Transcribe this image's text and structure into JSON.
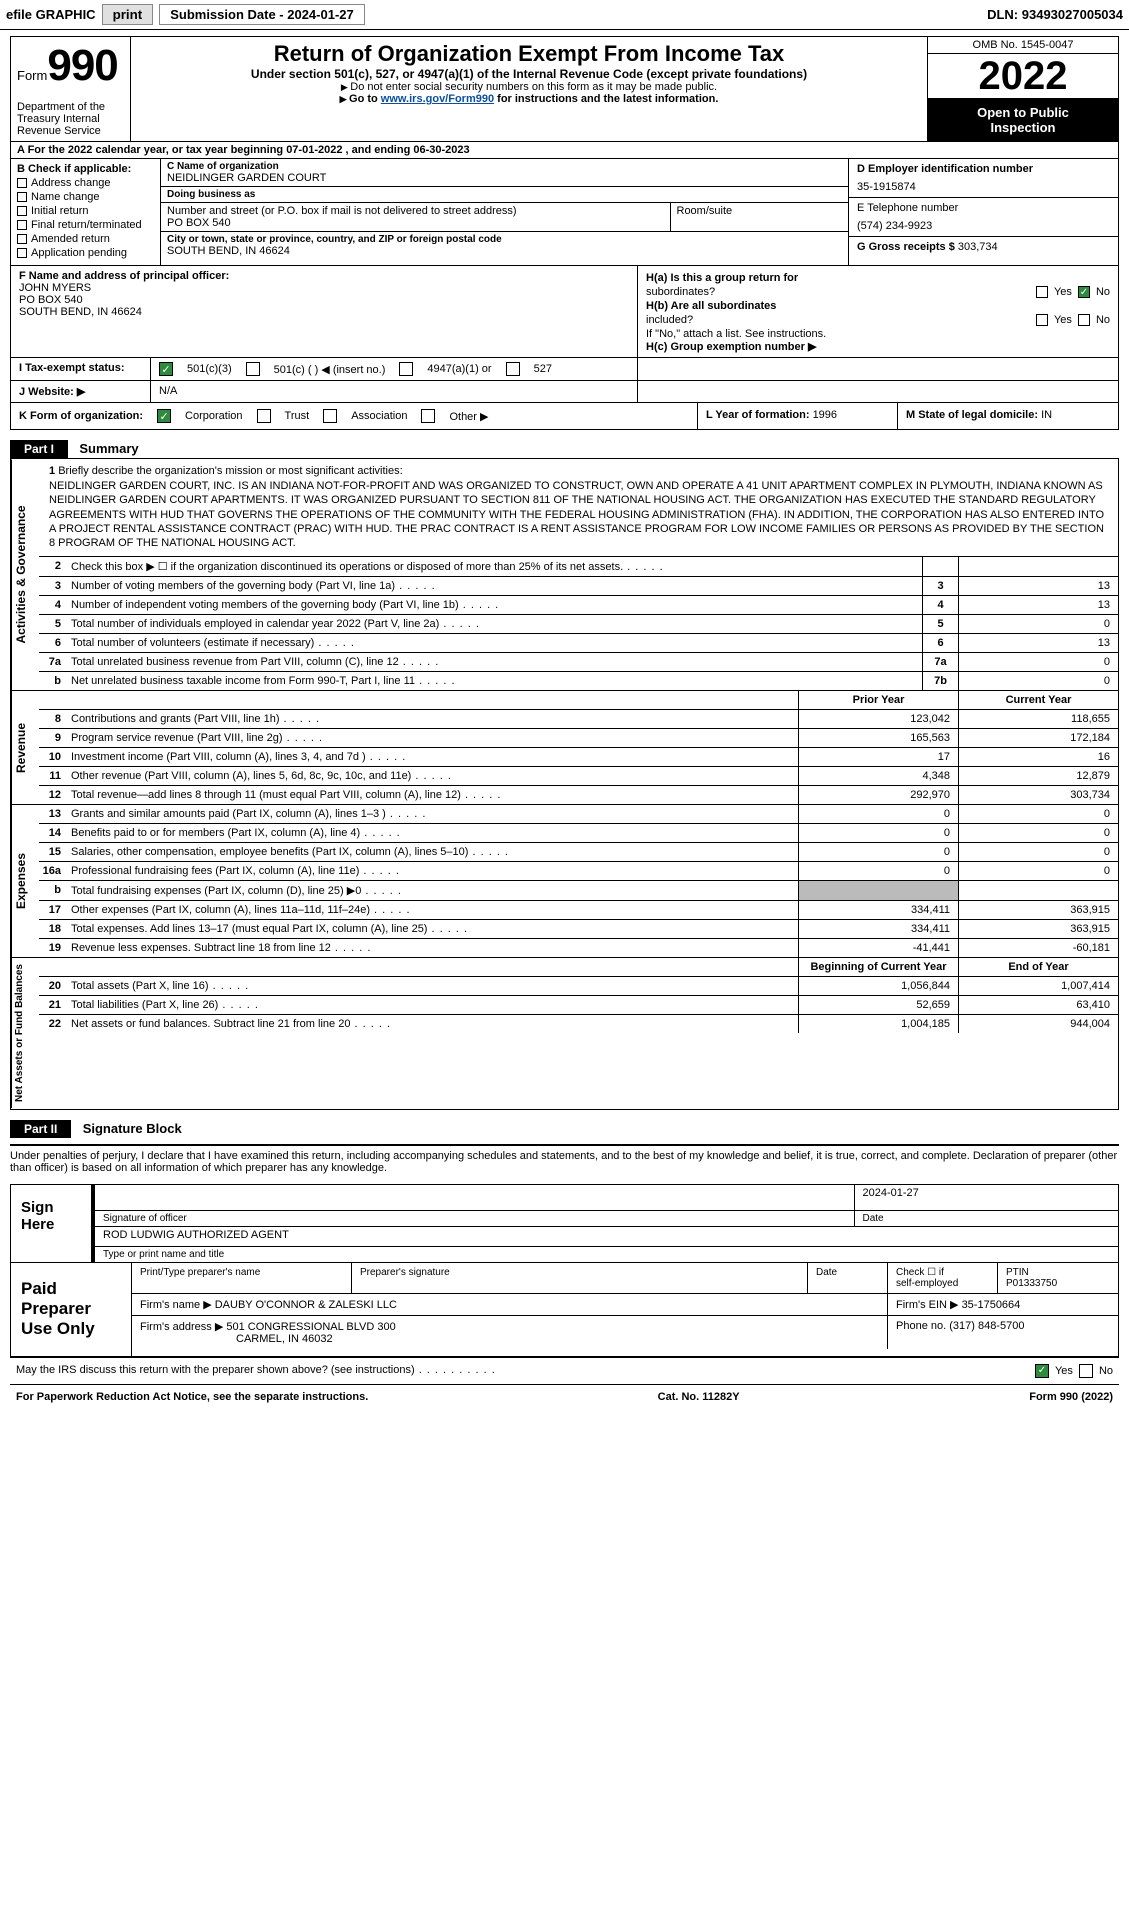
{
  "topbar": {
    "efile": "efile GRAPHIC",
    "print": "print",
    "sub_label": "Submission Date - ",
    "sub_date": "2024-01-27",
    "dln_label": "DLN: ",
    "dln": "93493027005034"
  },
  "header": {
    "form_word": "Form",
    "form_num": "990",
    "dept": "Department of the Treasury Internal Revenue Service",
    "title": "Return of Organization Exempt From Income Tax",
    "sub": "Under section 501(c), 527, or 4947(a)(1) of the Internal Revenue Code (except private foundations)",
    "line1": "Do not enter social security numbers on this form as it may be made public.",
    "line2_pre": "Go to ",
    "line2_link": "www.irs.gov/Form990",
    "line2_post": " for instructions and the latest information.",
    "omb": "OMB No. 1545-0047",
    "year": "2022",
    "inspect1": "Open to Public",
    "inspect2": "Inspection"
  },
  "rowA": "A For the 2022 calendar year, or tax year beginning 07-01-2022    , and ending 06-30-2023",
  "colB": {
    "hdr": "B Check if applicable:",
    "items": [
      "Address change",
      "Name change",
      "Initial return",
      "Final return/terminated",
      "Amended return",
      "Application pending"
    ]
  },
  "colC": {
    "name_lbl": "C Name of organization",
    "name": "NEIDLINGER GARDEN COURT",
    "dba_lbl": "Doing business as",
    "dba": "",
    "street_lbl": "Number and street (or P.O. box if mail is not delivered to street address)",
    "street": "PO BOX 540",
    "room_lbl": "Room/suite",
    "city_lbl": "City or town, state or province, country, and ZIP or foreign postal code",
    "city": "SOUTH BEND, IN  46624"
  },
  "colD": {
    "ein_lbl": "D Employer identification number",
    "ein": "35-1915874",
    "phone_lbl": "E Telephone number",
    "phone": "(574) 234-9923",
    "gross_lbl": "G Gross receipts $ ",
    "gross": "303,734"
  },
  "rowF": {
    "lbl": "F  Name and address of principal officer:",
    "name": "JOHN MYERS",
    "addr1": "PO BOX 540",
    "addr2": "SOUTH BEND, IN  46624"
  },
  "rowH": {
    "ha": "H(a)  Is this a group return for",
    "ha2": "subordinates?",
    "hb": "H(b)  Are all subordinates",
    "hb2": "included?",
    "hb_note": "If \"No,\" attach a list. See instructions.",
    "hc": "H(c)  Group exemption number ▶",
    "yes": "Yes",
    "no": "No"
  },
  "rowI": {
    "lbl": "I    Tax-exempt status:",
    "o1": "501(c)(3)",
    "o2": "501(c) (   ) ◀ (insert no.)",
    "o3": "4947(a)(1) or",
    "o4": "527"
  },
  "rowJ": {
    "lbl": "J   Website: ▶",
    "val": "N/A"
  },
  "rowK": {
    "lbl": "K Form of organization:",
    "o1": "Corporation",
    "o2": "Trust",
    "o3": "Association",
    "o4": "Other ▶"
  },
  "rowL": {
    "lbl": "L Year of formation: ",
    "val": "1996"
  },
  "rowM": {
    "lbl": "M State of legal domicile: ",
    "val": "IN"
  },
  "part1": {
    "hdr": "Part I",
    "title": "Summary"
  },
  "mission": {
    "num": "1",
    "lbl": "Briefly describe the organization's mission or most significant activities:",
    "text": "NEIDLINGER GARDEN COURT, INC. IS AN INDIANA NOT-FOR-PROFIT AND WAS ORGANIZED TO CONSTRUCT, OWN AND OPERATE A 41 UNIT APARTMENT COMPLEX IN PLYMOUTH, INDIANA KNOWN AS NEIDLINGER GARDEN COURT APARTMENTS. IT WAS ORGANIZED PURSUANT TO SECTION 811 OF THE NATIONAL HOUSING ACT. THE ORGANIZATION HAS EXECUTED THE STANDARD REGULATORY AGREEMENTS WITH HUD THAT GOVERNS THE OPERATIONS OF THE COMMUNITY WITH THE FEDERAL HOUSING ADMINISTRATION (FHA). IN ADDITION, THE CORPORATION HAS ALSO ENTERED INTO A PROJECT RENTAL ASSISTANCE CONTRACT (PRAC) WITH HUD. THE PRAC CONTRACT IS A RENT ASSISTANCE PROGRAM FOR LOW INCOME FAMILIES OR PERSONS AS PROVIDED BY THE SECTION 8 PROGRAM OF THE NATIONAL HOUSING ACT."
  },
  "strips": {
    "ag": "Activities & Governance",
    "rev": "Revenue",
    "exp": "Expenses",
    "net": "Net Assets or Fund Balances"
  },
  "lines_ag": [
    {
      "n": "2",
      "d": "Check this box ▶ ☐  if the organization discontinued its operations or disposed of more than 25% of its net assets.",
      "box": "",
      "v": ""
    },
    {
      "n": "3",
      "d": "Number of voting members of the governing body (Part VI, line 1a)",
      "box": "3",
      "v": "13"
    },
    {
      "n": "4",
      "d": "Number of independent voting members of the governing body (Part VI, line 1b)",
      "box": "4",
      "v": "13"
    },
    {
      "n": "5",
      "d": "Total number of individuals employed in calendar year 2022 (Part V, line 2a)",
      "box": "5",
      "v": "0"
    },
    {
      "n": "6",
      "d": "Total number of volunteers (estimate if necessary)",
      "box": "6",
      "v": "13"
    },
    {
      "n": "7a",
      "d": "Total unrelated business revenue from Part VIII, column (C), line 12",
      "box": "7a",
      "v": "0"
    },
    {
      "n": "b",
      "d": "Net unrelated business taxable income from Form 990-T, Part I, line 11",
      "box": "7b",
      "v": "0"
    }
  ],
  "col_hdrs": {
    "py": "Prior Year",
    "cy": "Current Year",
    "boy": "Beginning of Current Year",
    "eoy": "End of Year"
  },
  "lines_rev": [
    {
      "n": "8",
      "d": "Contributions and grants (Part VIII, line 1h)",
      "py": "123,042",
      "cy": "118,655"
    },
    {
      "n": "9",
      "d": "Program service revenue (Part VIII, line 2g)",
      "py": "165,563",
      "cy": "172,184"
    },
    {
      "n": "10",
      "d": "Investment income (Part VIII, column (A), lines 3, 4, and 7d )",
      "py": "17",
      "cy": "16"
    },
    {
      "n": "11",
      "d": "Other revenue (Part VIII, column (A), lines 5, 6d, 8c, 9c, 10c, and 11e)",
      "py": "4,348",
      "cy": "12,879"
    },
    {
      "n": "12",
      "d": "Total revenue—add lines 8 through 11 (must equal Part VIII, column (A), line 12)",
      "py": "292,970",
      "cy": "303,734"
    }
  ],
  "lines_exp": [
    {
      "n": "13",
      "d": "Grants and similar amounts paid (Part IX, column (A), lines 1–3 )",
      "py": "0",
      "cy": "0"
    },
    {
      "n": "14",
      "d": "Benefits paid to or for members (Part IX, column (A), line 4)",
      "py": "0",
      "cy": "0"
    },
    {
      "n": "15",
      "d": "Salaries, other compensation, employee benefits (Part IX, column (A), lines 5–10)",
      "py": "0",
      "cy": "0"
    },
    {
      "n": "16a",
      "d": "Professional fundraising fees (Part IX, column (A), line 11e)",
      "py": "0",
      "cy": "0"
    },
    {
      "n": "b",
      "d": "Total fundraising expenses (Part IX, column (D), line 25) ▶0",
      "py": "",
      "cy": "",
      "shade": true
    },
    {
      "n": "17",
      "d": "Other expenses (Part IX, column (A), lines 11a–11d, 11f–24e)",
      "py": "334,411",
      "cy": "363,915"
    },
    {
      "n": "18",
      "d": "Total expenses. Add lines 13–17 (must equal Part IX, column (A), line 25)",
      "py": "334,411",
      "cy": "363,915"
    },
    {
      "n": "19",
      "d": "Revenue less expenses. Subtract line 18 from line 12",
      "py": "-41,441",
      "cy": "-60,181"
    }
  ],
  "lines_net": [
    {
      "n": "20",
      "d": "Total assets (Part X, line 16)",
      "py": "1,056,844",
      "cy": "1,007,414"
    },
    {
      "n": "21",
      "d": "Total liabilities (Part X, line 26)",
      "py": "52,659",
      "cy": "63,410"
    },
    {
      "n": "22",
      "d": "Net assets or fund balances. Subtract line 21 from line 20",
      "py": "1,004,185",
      "cy": "944,004"
    }
  ],
  "part2": {
    "hdr": "Part II",
    "title": "Signature Block"
  },
  "sig": {
    "intro": "Under penalties of perjury, I declare that I have examined this return, including accompanying schedules and statements, and to the best of my knowledge and belief, it is true, correct, and complete. Declaration of preparer (other than officer) is based on all information of which preparer has any knowledge.",
    "sign": "Sign",
    "here": "Here",
    "sig_lbl": "Signature of officer",
    "date_lbl": "Date",
    "date": "2024-01-27",
    "name": "ROD LUDWIG  AUTHORIZED AGENT",
    "name_lbl": "Type or print name and title"
  },
  "prep": {
    "hdr1": "Paid",
    "hdr2": "Preparer",
    "hdr3": "Use Only",
    "c1": "Print/Type preparer's name",
    "c2": "Preparer's signature",
    "c3": "Date",
    "c4a": "Check ☐ if",
    "c4b": "self-employed",
    "c5": "PTIN",
    "ptin": "P01333750",
    "firm_lbl": "Firm's name    ▶ ",
    "firm": "DAUBY O'CONNOR & ZALESKI LLC",
    "ein_lbl": "Firm's EIN ▶ ",
    "ein": "35-1750664",
    "addr_lbl": "Firm's address ▶ ",
    "addr1": "501 CONGRESSIONAL BLVD 300",
    "addr2": "CARMEL, IN  46032",
    "phone_lbl": "Phone no. ",
    "phone": "(317) 848-5700"
  },
  "footer": {
    "discuss": "May the IRS discuss this return with the preparer shown above? (see instructions)",
    "yes": "Yes",
    "no": "No",
    "paperwork": "For Paperwork Reduction Act Notice, see the separate instructions.",
    "cat": "Cat. No. 11282Y",
    "form": "Form 990 (2022)"
  }
}
